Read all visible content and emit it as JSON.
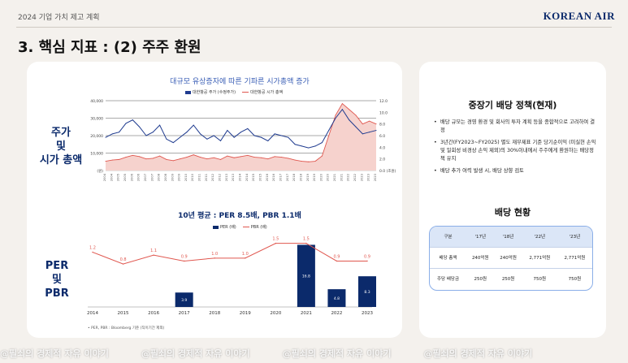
{
  "header": {
    "doc_title": "2024 기업 가치 제고 계획",
    "logo_text": "KOREAN AIR",
    "section_title": "3. 핵심 지표 : (2) 주주 환원"
  },
  "left_panel": {
    "label_top": [
      "주가",
      "및",
      "시가 총액"
    ],
    "label_bottom": [
      "PER",
      "및",
      "PBR"
    ],
    "footnote": "• PER, PBR : Bloomberg 기준 (직이기간 제외)"
  },
  "right_panel": {
    "policy_title": "중장기 배당 정책(현재)",
    "policy_items": [
      "배당 규모는 경영 환경 및 회사의 투자 계획 등을 종합적으로 고려하여 결정",
      "3년간(FY2023~FY2025) 별도 재무제표 기준 당기순이익 (미실현 손익 및 일회성 비경상 손익 제외)의 30%이내에서 주주에게 환원하는 배당정책 유지",
      "배당 추가 여력 발생 시, 배당 상향 검토"
    ],
    "dividend_title": "배당 현황",
    "dividend_table": {
      "headers": [
        "구분",
        "'17년",
        "'18년",
        "'22년",
        "'23년"
      ],
      "rows": [
        [
          "배당 총액",
          "240억원",
          "240억원",
          "2,771억원",
          "2,771억원"
        ],
        [
          "주당 배당금",
          "250원",
          "250원",
          "750원",
          "750원"
        ]
      ]
    }
  },
  "watermark": "@필쇠의 경제적 자유 이야기",
  "colors": {
    "navy": "#0b2a6b",
    "stock_line": "#1f3b8f",
    "mcap_line": "#e0574f",
    "mcap_fill": "#f6d2cd",
    "bar": "#0b2a6b",
    "pbr_line": "#e0574f"
  },
  "chart_data": [
    {
      "type": "line",
      "title": "대규모 유상증자에 따른 기파른 시가총액 증가",
      "legend": [
        "대한항공 주가 (수정주가)",
        "대한항공 시가 총액"
      ],
      "legend_position": "top-center",
      "y_left": {
        "ylim": [
          0,
          40000
        ],
        "ticks": [
          "(원)",
          "10,000",
          "20,000",
          "30,000",
          "40,000"
        ]
      },
      "y_right": {
        "ylim": [
          0,
          12
        ],
        "ticks": [
          "0.0 (조원)",
          "2.0",
          "4.0",
          "6.0",
          "8.0",
          "10.0",
          "12.0"
        ]
      },
      "x": [
        "2004 1Q",
        "2004 3Q",
        "2005 1Q",
        "2005 3Q",
        "2006 1Q",
        "2006 3Q",
        "2007 1Q",
        "2007 3Q",
        "2008 1Q",
        "2008 3Q",
        "2009 1Q",
        "2009 3Q",
        "2010 1Q",
        "2010 3Q",
        "2011 1Q",
        "2011 3Q",
        "2012 1Q",
        "2012 3Q",
        "2013 1Q",
        "2013 3Q",
        "2014 1Q",
        "2014 3Q",
        "2015 1Q",
        "2015 3Q",
        "2016 1Q",
        "2016 3Q",
        "2017 1Q",
        "2017 3Q",
        "2018 1Q",
        "2018 3Q",
        "2019 1Q",
        "2019 3Q",
        "2020 1Q",
        "2020 3Q",
        "2021 1Q",
        "2021 3Q",
        "2022 1Q",
        "2022 3Q",
        "2023 1Q",
        "2023 3Q",
        "2023 4Q"
      ],
      "x_tick_labels": [
        "2004",
        "2004",
        "2005",
        "2005",
        "2006",
        "2006",
        "2007",
        "2007",
        "2008",
        "2008",
        "2009",
        "2009",
        "2010",
        "2010",
        "2011",
        "2011",
        "2012",
        "2012",
        "2013",
        "2013",
        "2014",
        "2014",
        "2015",
        "2015",
        "2016",
        "2016",
        "2017",
        "2017",
        "2018",
        "2018",
        "2019",
        "2019",
        "2020",
        "2020",
        "2021",
        "2021",
        "2022",
        "2022",
        "2023",
        "2023",
        "2023"
      ],
      "series": [
        {
          "name": "대한항공 주가 (수정주가)",
          "axis": "left",
          "values": [
            19000,
            21000,
            22000,
            27000,
            29000,
            25000,
            20000,
            22000,
            26000,
            18000,
            16000,
            19000,
            22000,
            26000,
            21000,
            18000,
            20000,
            17000,
            23000,
            19000,
            22000,
            24000,
            20000,
            19000,
            17000,
            21000,
            20000,
            19000,
            15000,
            14000,
            13000,
            14000,
            16000,
            23000,
            30000,
            35000,
            29000,
            25000,
            21000,
            22000,
            23000
          ]
        },
        {
          "name": "대한항공 시가 총액",
          "axis": "right",
          "values": [
            1.6,
            1.8,
            1.9,
            2.3,
            2.6,
            2.4,
            2.0,
            2.1,
            2.5,
            1.9,
            1.7,
            2.0,
            2.3,
            2.7,
            2.3,
            2.0,
            2.2,
            1.9,
            2.5,
            2.2,
            2.4,
            2.6,
            2.3,
            2.2,
            2.0,
            2.4,
            2.3,
            2.1,
            1.8,
            1.6,
            1.5,
            1.6,
            2.5,
            6.0,
            9.5,
            11.5,
            10.5,
            9.5,
            8.0,
            8.5,
            8.0
          ]
        }
      ],
      "grid": true
    },
    {
      "type": "bar",
      "title": "10년 평균 : PER 8.5배, PBR 1.1배",
      "legend": [
        "PER (배)",
        "PBR (배)"
      ],
      "legend_position": "top-center",
      "categories": [
        "2014",
        "2015",
        "2016",
        "2017",
        "2018",
        "2019",
        "2020",
        "2021",
        "2022",
        "2023"
      ],
      "series": [
        {
          "name": "PER (배)",
          "type": "bar",
          "values": [
            null,
            null,
            null,
            3.9,
            null,
            null,
            null,
            16.8,
            4.8,
            8.3
          ],
          "labels": [
            "",
            "",
            "",
            "3.9",
            "",
            "",
            "",
            "16.8",
            "4.8",
            "8.3"
          ]
        },
        {
          "name": "PBR (배)",
          "type": "line",
          "values": [
            1.2,
            0.8,
            1.1,
            0.9,
            1.0,
            1.0,
            1.5,
            1.5,
            0.9,
            0.9
          ],
          "labels": [
            "1.2",
            "0.8",
            "1.1",
            "0.9",
            "1.0",
            "1.0",
            "1.5",
            "1.5",
            "0.9",
            "0.9"
          ]
        }
      ],
      "grid": false
    }
  ]
}
